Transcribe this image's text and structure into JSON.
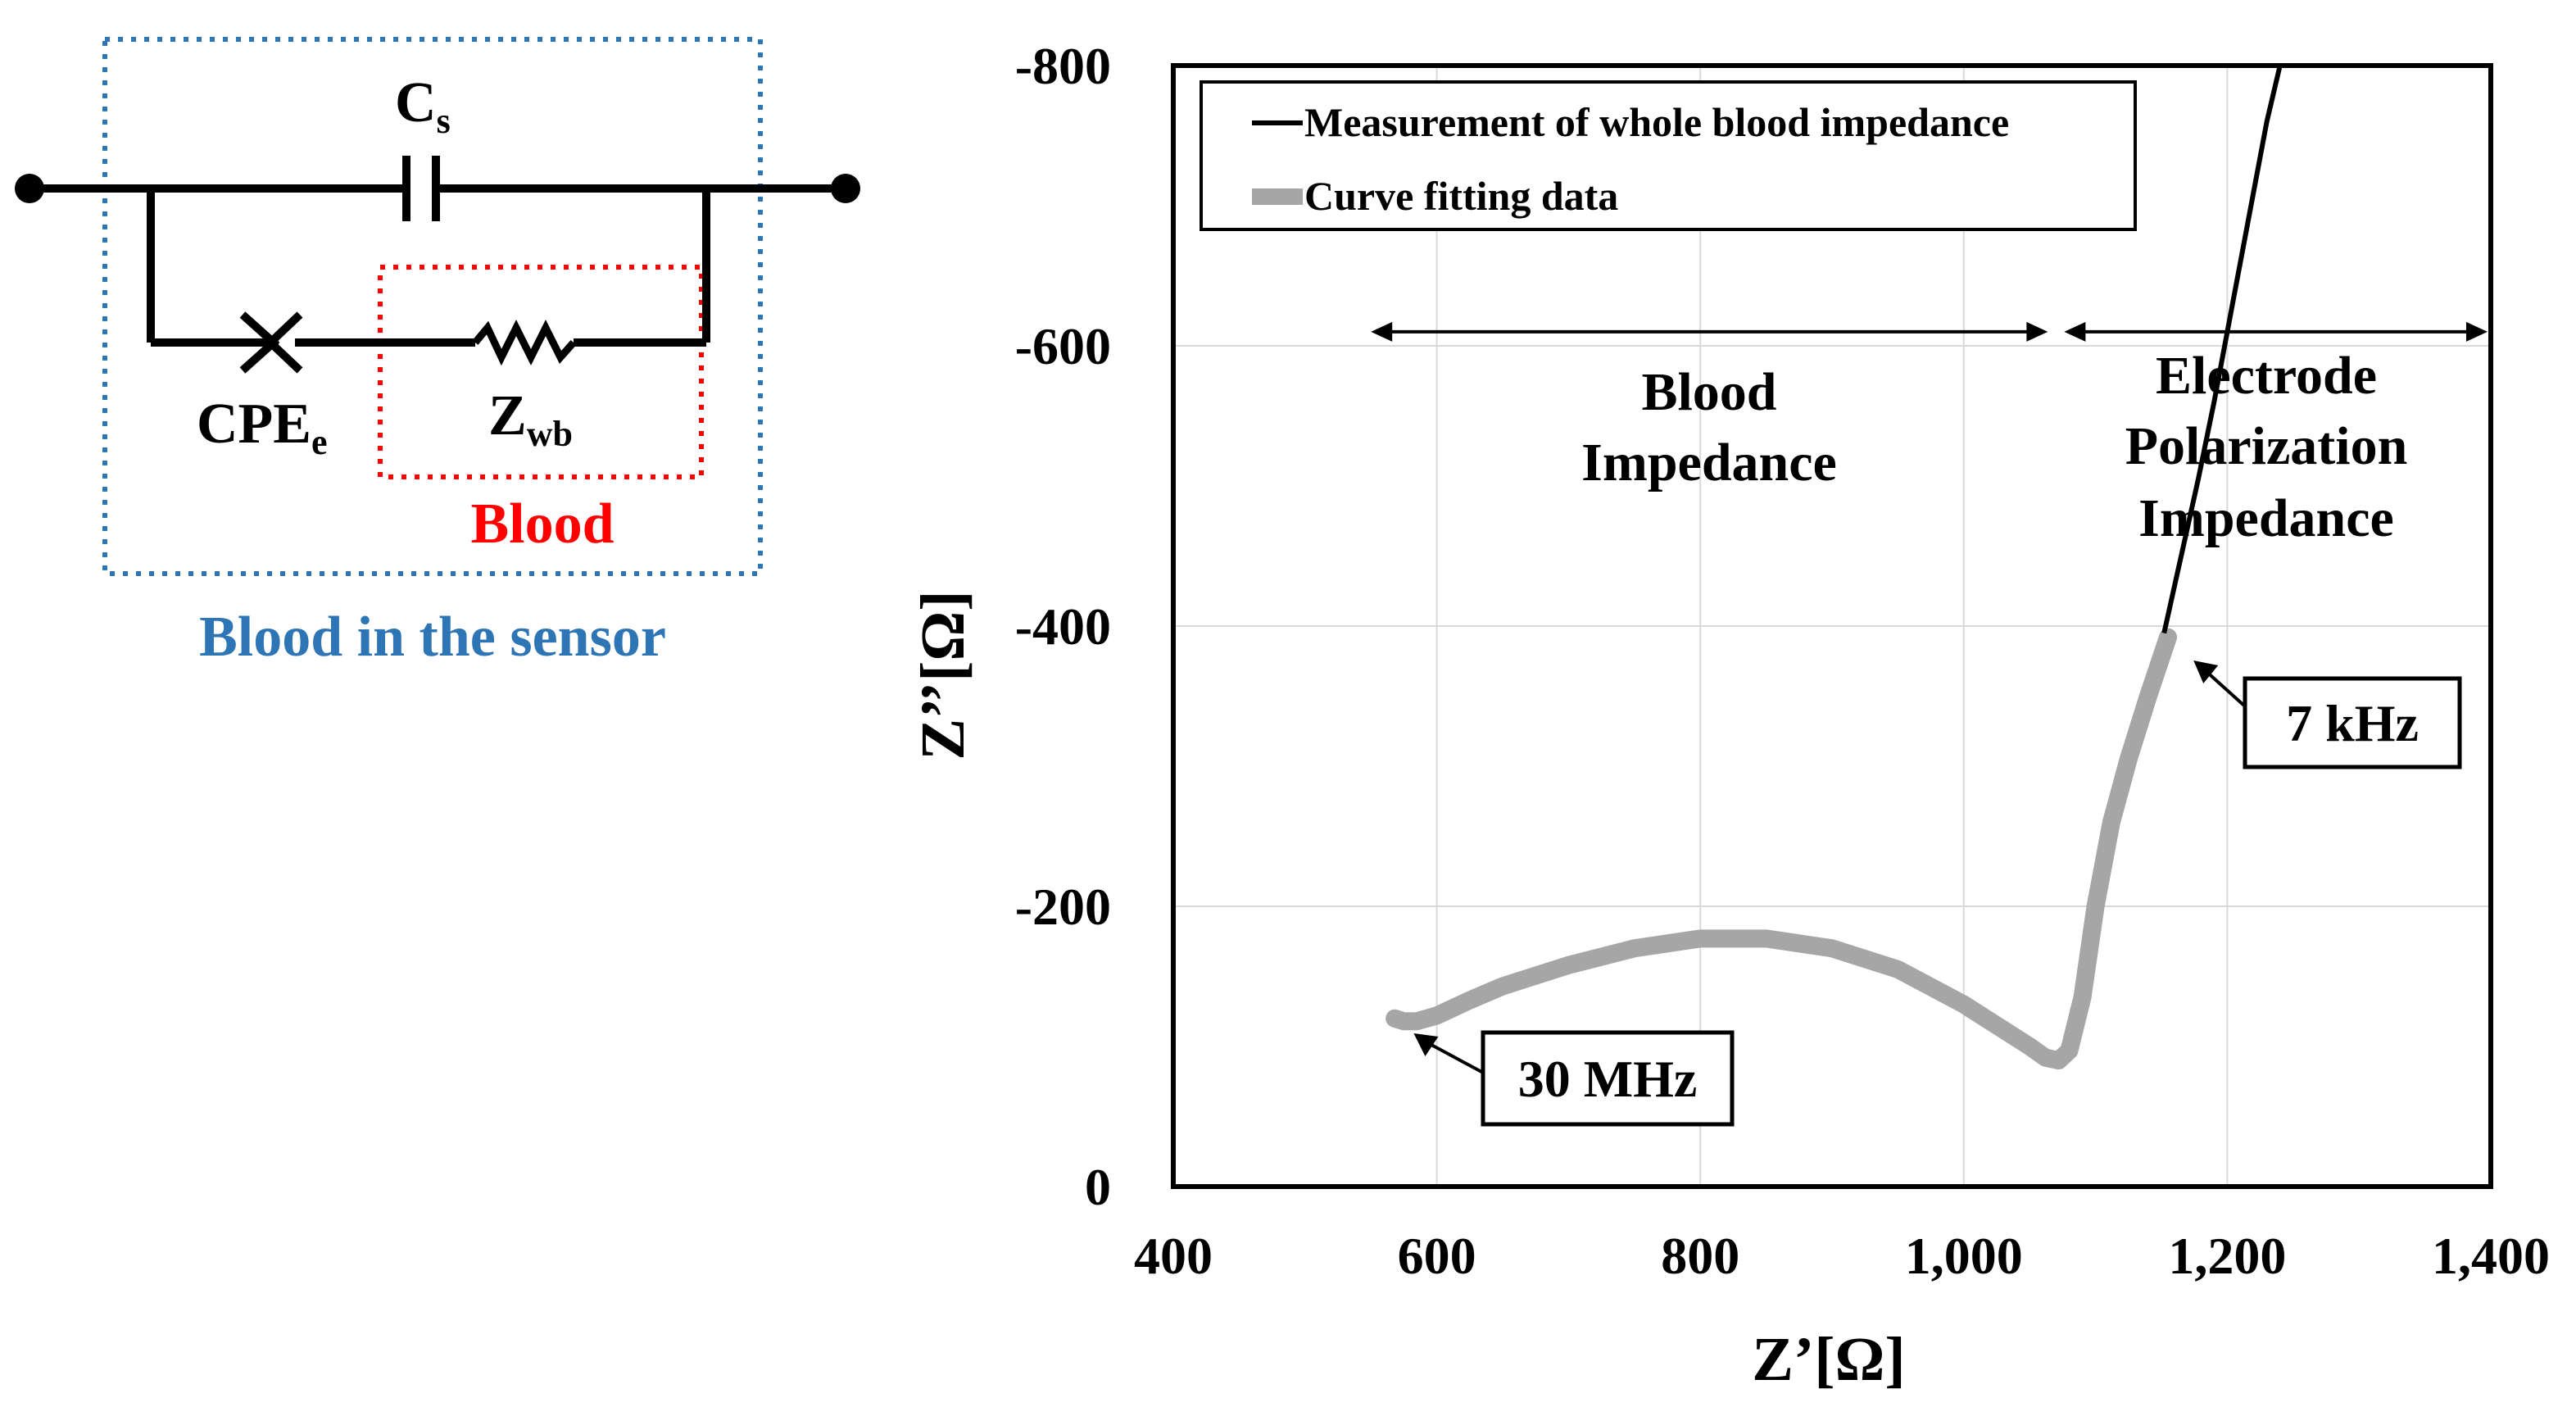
{
  "circuit": {
    "cs_label": "C",
    "cs_sub": "s",
    "cpe_label": "CPE",
    "cpe_sub": "e",
    "zwb_label": "Z",
    "zwb_sub": "wb",
    "blood_label": "Blood",
    "sensor_label": "Blood in the sensor",
    "colors": {
      "sensor_box": "#2e75b6",
      "blood_box": "#ff0000",
      "blood_text": "#ff0000",
      "sensor_text": "#2e75b6",
      "wire": "#000000"
    }
  },
  "chart_data": {
    "type": "line",
    "title": "",
    "xlabel": "Z’[Ω]",
    "ylabel": "Z’’[Ω]",
    "xlim": [
      400,
      1400
    ],
    "ylim": [
      0,
      -800
    ],
    "x_ticks": [
      400,
      600,
      800,
      1000,
      1200,
      1400
    ],
    "x_tick_labels": [
      "400",
      "600",
      "800",
      "1,000",
      "1,200",
      "1,400"
    ],
    "y_ticks": [
      0,
      -200,
      -400,
      -600,
      -800
    ],
    "y_tick_labels": [
      "0",
      "-200",
      "-400",
      "-600",
      "-800"
    ],
    "grid": true,
    "legend": {
      "position": "top-left"
    },
    "series": [
      {
        "name": "Measurement of whole blood impedance",
        "color": "#000000",
        "x": [
          1152,
          1165,
          1178,
          1190,
          1200,
          1210,
          1220,
          1230,
          1240
        ],
        "y": [
          -395,
          -450,
          -505,
          -560,
          -610,
          -660,
          -710,
          -760,
          -800
        ]
      },
      {
        "name": "Curve fitting data",
        "color": "#a6a6a6",
        "x": [
          568,
          575,
          585,
          600,
          625,
          650,
          700,
          750,
          800,
          850,
          900,
          950,
          1000,
          1030,
          1050,
          1062,
          1072,
          1080,
          1090,
          1100,
          1112,
          1125,
          1140,
          1155
        ],
        "y": [
          -120,
          -118,
          -118,
          -122,
          -133,
          -143,
          -158,
          -170,
          -177,
          -177,
          -170,
          -155,
          -130,
          -112,
          -100,
          -92,
          -90,
          -97,
          -135,
          -200,
          -260,
          -305,
          -350,
          -392
        ]
      }
    ],
    "annotations": {
      "blood_impedance": {
        "line1": "Blood",
        "line2": "Impedance",
        "x_from": 550,
        "x_to": 1070,
        "y": -610
      },
      "electrode_impedance": {
        "line1": "Electrode",
        "line2": "Polarization",
        "line3": "Impedance",
        "x_from": 1070,
        "x_to": 1400,
        "y": -610
      },
      "label_7khz": {
        "text": "7 kHz",
        "point_x": 1152,
        "point_y": -393
      },
      "label_30mhz": {
        "text": "30 MHz",
        "point_x": 580,
        "point_y": -100
      }
    }
  }
}
